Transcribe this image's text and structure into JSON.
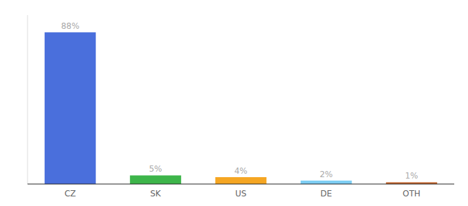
{
  "chart_data": {
    "type": "bar",
    "categories": [
      "CZ",
      "SK",
      "US",
      "DE",
      "OTH"
    ],
    "values": [
      88,
      5,
      4,
      2,
      1
    ],
    "value_labels": [
      "88%",
      "5%",
      "4%",
      "2%",
      "1%"
    ],
    "colors": [
      "#4a6fdc",
      "#3db54a",
      "#f5a623",
      "#7ecef4",
      "#c0622a"
    ],
    "ylim": [
      0,
      98
    ],
    "data_labels": true,
    "tick_labels": "x",
    "grid": false
  }
}
